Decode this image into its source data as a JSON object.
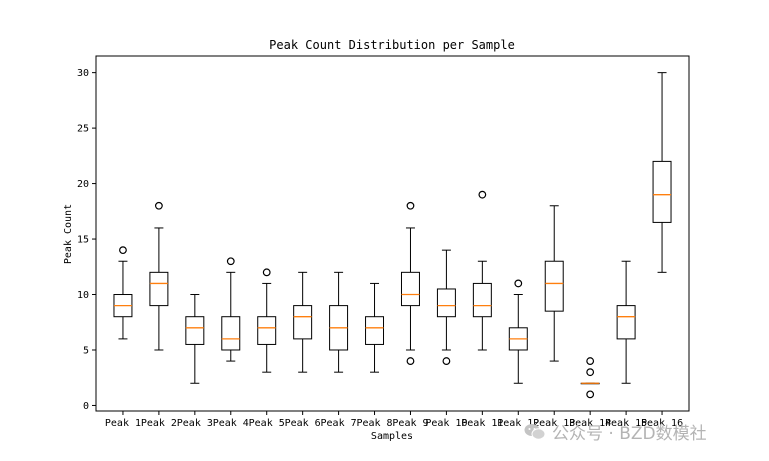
{
  "chart_data": {
    "type": "boxplot",
    "title": "Peak Count Distribution per Sample",
    "xlabel": "Samples",
    "ylabel": "Peak Count",
    "ylim": [
      -0.5,
      31.5
    ],
    "yticks": [
      0,
      5,
      10,
      15,
      20,
      25,
      30
    ],
    "grid": false,
    "colors": {
      "box": "#000000",
      "median": "#ff7f0e"
    },
    "categories": [
      "Peak 1",
      "Peak 2",
      "Peak 3",
      "Peak 4",
      "Peak 5",
      "Peak 6",
      "Peak 7",
      "Peak 8",
      "Peak 9",
      "Peak 10",
      "Peak 11",
      "Peak 12",
      "Peak 13",
      "Peak 14",
      "Peak 15",
      "Peak 16"
    ],
    "boxes": [
      {
        "whislo": 6,
        "q1": 8,
        "med": 9,
        "q3": 10,
        "whishi": 13,
        "fliers": [
          14
        ]
      },
      {
        "whislo": 5,
        "q1": 9,
        "med": 11,
        "q3": 12,
        "whishi": 16,
        "fliers": [
          18
        ]
      },
      {
        "whislo": 2,
        "q1": 5.5,
        "med": 7,
        "q3": 8,
        "whishi": 10,
        "fliers": []
      },
      {
        "whislo": 4,
        "q1": 5,
        "med": 6,
        "q3": 8,
        "whishi": 12,
        "fliers": [
          13
        ]
      },
      {
        "whislo": 3,
        "q1": 5.5,
        "med": 7,
        "q3": 8,
        "whishi": 11,
        "fliers": [
          12
        ]
      },
      {
        "whislo": 3,
        "q1": 6,
        "med": 8,
        "q3": 9,
        "whishi": 12,
        "fliers": []
      },
      {
        "whislo": 3,
        "q1": 5,
        "med": 7,
        "q3": 9,
        "whishi": 12,
        "fliers": []
      },
      {
        "whislo": 3,
        "q1": 5.5,
        "med": 7,
        "q3": 8,
        "whishi": 11,
        "fliers": []
      },
      {
        "whislo": 5,
        "q1": 9,
        "med": 10,
        "q3": 12,
        "whishi": 16,
        "fliers": [
          18,
          4
        ]
      },
      {
        "whislo": 5,
        "q1": 8,
        "med": 9,
        "q3": 10.5,
        "whishi": 14,
        "fliers": [
          4
        ]
      },
      {
        "whislo": 5,
        "q1": 8,
        "med": 9,
        "q3": 11,
        "whishi": 13,
        "fliers": [
          19
        ]
      },
      {
        "whislo": 2,
        "q1": 5,
        "med": 6,
        "q3": 7,
        "whishi": 10,
        "fliers": [
          11
        ]
      },
      {
        "whislo": 4,
        "q1": 8.5,
        "med": 11,
        "q3": 13,
        "whishi": 18,
        "fliers": []
      },
      {
        "whislo": 2,
        "q1": 2,
        "med": 2,
        "q3": 2,
        "whishi": 2,
        "fliers": [
          4,
          3,
          1
        ]
      },
      {
        "whislo": 2,
        "q1": 6,
        "med": 8,
        "q3": 9,
        "whishi": 13,
        "fliers": []
      },
      {
        "whislo": 12,
        "q1": 16.5,
        "med": 19,
        "q3": 22,
        "whishi": 30,
        "fliers": []
      }
    ]
  },
  "watermark": {
    "text": "公众号 · BZD数模社",
    "icon": "wechat-icon"
  }
}
